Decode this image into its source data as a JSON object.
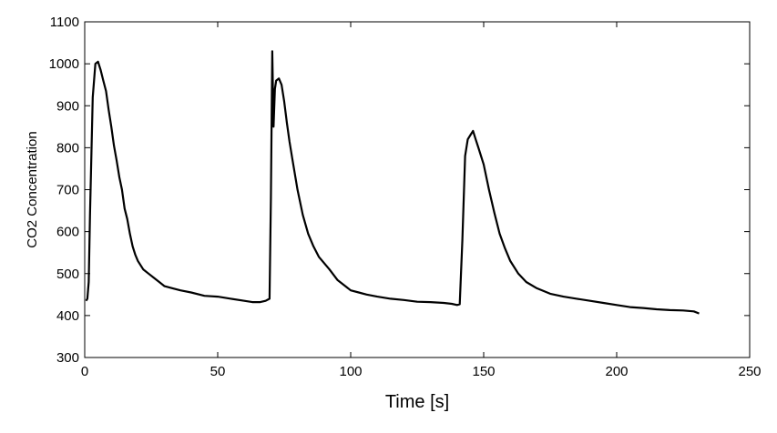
{
  "chart_data": {
    "type": "line",
    "title": "",
    "xlabel": "Time [s]",
    "ylabel": "CO2 Concentration",
    "xlim": [
      0,
      250
    ],
    "ylim": [
      300,
      1100
    ],
    "xticks": [
      0,
      50,
      100,
      150,
      200,
      250
    ],
    "yticks": [
      300,
      400,
      500,
      600,
      700,
      800,
      900,
      1000,
      1100
    ],
    "grid": false,
    "legend": "none",
    "line_color": "#000000",
    "series": [
      {
        "x": [
          0.5,
          1,
          1.5,
          2,
          3,
          4,
          5,
          6,
          7,
          8,
          9,
          10,
          11,
          12,
          13,
          14,
          15,
          16,
          17,
          18,
          19,
          20,
          22,
          24,
          26,
          28,
          30,
          33,
          36,
          40,
          45,
          50,
          55,
          60,
          63,
          66,
          68,
          69.5,
          70,
          70.5,
          71,
          71.5,
          72,
          73,
          74,
          75,
          76,
          77,
          78,
          80,
          82,
          84,
          86,
          88,
          90,
          92,
          95,
          98,
          100,
          103,
          106,
          110,
          115,
          120,
          125,
          130,
          135,
          138,
          140,
          141,
          142,
          143,
          144,
          145,
          146,
          147,
          148,
          150,
          152,
          154,
          156,
          158,
          160,
          163,
          166,
          170,
          175,
          180,
          185,
          190,
          195,
          200,
          205,
          210,
          215,
          220,
          225,
          229,
          231
        ],
        "y": [
          435,
          440,
          480,
          640,
          920,
          1000,
          1005,
          985,
          960,
          935,
          890,
          850,
          805,
          770,
          730,
          700,
          655,
          630,
          595,
          565,
          545,
          530,
          510,
          500,
          490,
          480,
          470,
          465,
          460,
          455,
          447,
          445,
          440,
          435,
          432,
          432,
          435,
          440,
          680,
          1030,
          850,
          940,
          960,
          965,
          950,
          910,
          860,
          815,
          775,
          700,
          640,
          595,
          565,
          540,
          525,
          510,
          485,
          470,
          460,
          455,
          450,
          445,
          440,
          437,
          433,
          432,
          430,
          428,
          425,
          427,
          580,
          780,
          820,
          830,
          840,
          820,
          800,
          760,
          700,
          645,
          595,
          560,
          530,
          500,
          480,
          465,
          452,
          445,
          440,
          435,
          430,
          425,
          420,
          418,
          415,
          413,
          412,
          410,
          405
        ]
      }
    ]
  }
}
